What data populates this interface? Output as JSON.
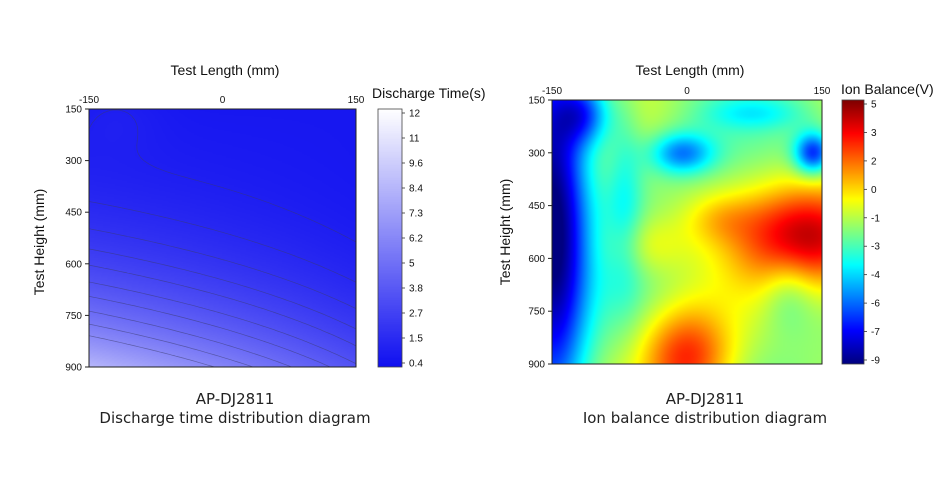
{
  "chart_data": [
    {
      "type": "heatmap",
      "name": "discharge-time",
      "x_label": "Test Length (mm)",
      "y_label": "Test Height (mm)",
      "x_ticks": [
        "-150",
        "0",
        "150"
      ],
      "y_ticks": [
        "150",
        "300",
        "450",
        "600",
        "750",
        "900"
      ],
      "x_range": [
        -150,
        150
      ],
      "y_range": [
        150,
        900
      ],
      "colorbar_title": "Discharge Time(s)",
      "colorbar_ticks": [
        "12",
        "11",
        "9.6",
        "8.4",
        "7.3",
        "6.2",
        "5",
        "3.8",
        "2.7",
        "1.5",
        "0.4"
      ],
      "z_range": [
        0.4,
        12.5
      ],
      "colors": {
        "low": "#1010f0",
        "high": "#ffffff"
      },
      "caption_model": "AP-DJ2811",
      "caption_title": "Discharge time distribution diagram"
    },
    {
      "type": "heatmap",
      "name": "ion-balance",
      "x_label": "Test Length (mm)",
      "y_label": "Test Height (mm)",
      "x_ticks": [
        "-150",
        "0",
        "150"
      ],
      "y_ticks": [
        "150",
        "300",
        "450",
        "600",
        "750",
        "900"
      ],
      "x_range": [
        -150,
        150
      ],
      "y_range": [
        150,
        900
      ],
      "colorbar_title": "Ion Balance(V)",
      "colorbar_ticks": [
        "5",
        "3",
        "2",
        "0",
        "-1",
        "-3",
        "-4",
        "-6",
        "-7",
        "-9"
      ],
      "z_range": [
        -9.5,
        5.5
      ],
      "colormap": "jet",
      "caption_model": "AP-DJ2811",
      "caption_title": "Ion balance distribution diagram"
    }
  ]
}
